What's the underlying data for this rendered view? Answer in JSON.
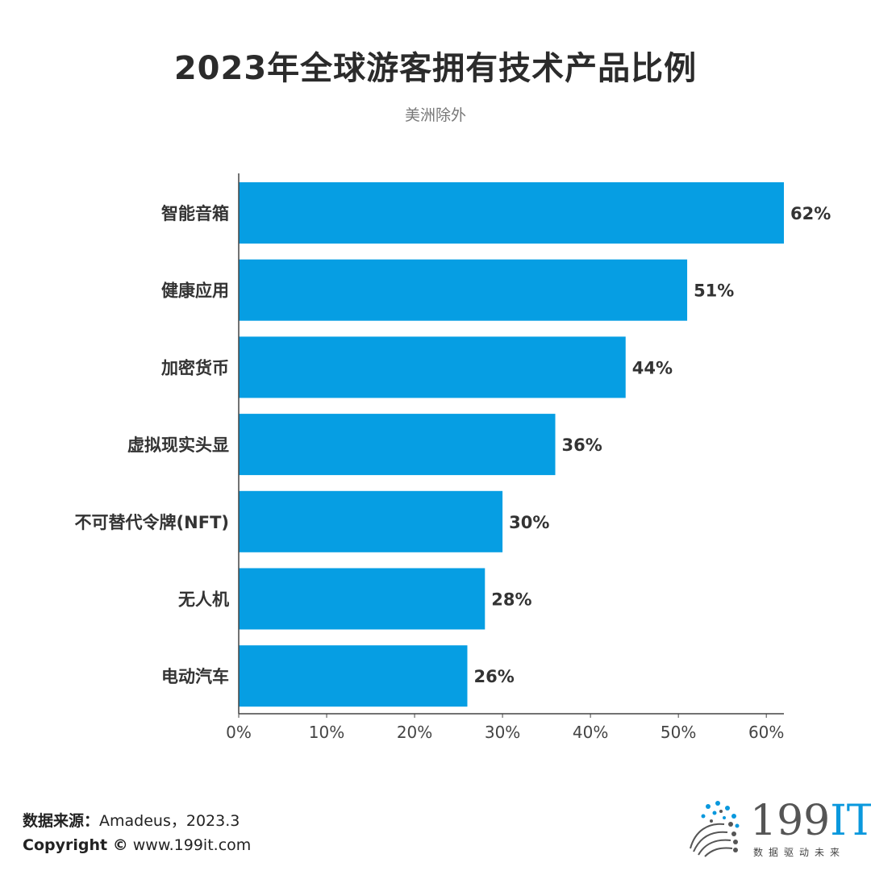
{
  "header": {
    "title": "2023年全球游客拥有技术产品比例",
    "subtitle": "美洲除外"
  },
  "chart_data": {
    "type": "bar",
    "orientation": "horizontal",
    "title": "2023年全球游客拥有技术产品比例",
    "subtitle": "美洲除外",
    "categories": [
      "智能音箱",
      "健康应用",
      "加密货币",
      "虚拟现实头显",
      "不可替代令牌(NFT)",
      "无人机",
      "电动汽车"
    ],
    "values": [
      62,
      51,
      44,
      36,
      30,
      28,
      26
    ],
    "value_labels": [
      "62%",
      "51%",
      "44%",
      "36%",
      "30%",
      "28%",
      "26%"
    ],
    "xlim": [
      0,
      62
    ],
    "xticks": [
      0,
      10,
      20,
      30,
      40,
      50,
      60
    ],
    "xtick_labels": [
      "0%",
      "10%",
      "20%",
      "30%",
      "40%",
      "50%",
      "60%"
    ],
    "xlabel": "",
    "ylabel": "",
    "bar_color": "#069ee3",
    "grid": false
  },
  "footer": {
    "source_label": "数据来源：",
    "source_value": "Amadeus，2023.3",
    "copyright_label": "Copyright ©",
    "copyright_value": " www.199it.com"
  },
  "logo": {
    "number": "199",
    "letters": "IT",
    "tagline": "数据驱动未来",
    "accent_color": "#0a98dd"
  }
}
